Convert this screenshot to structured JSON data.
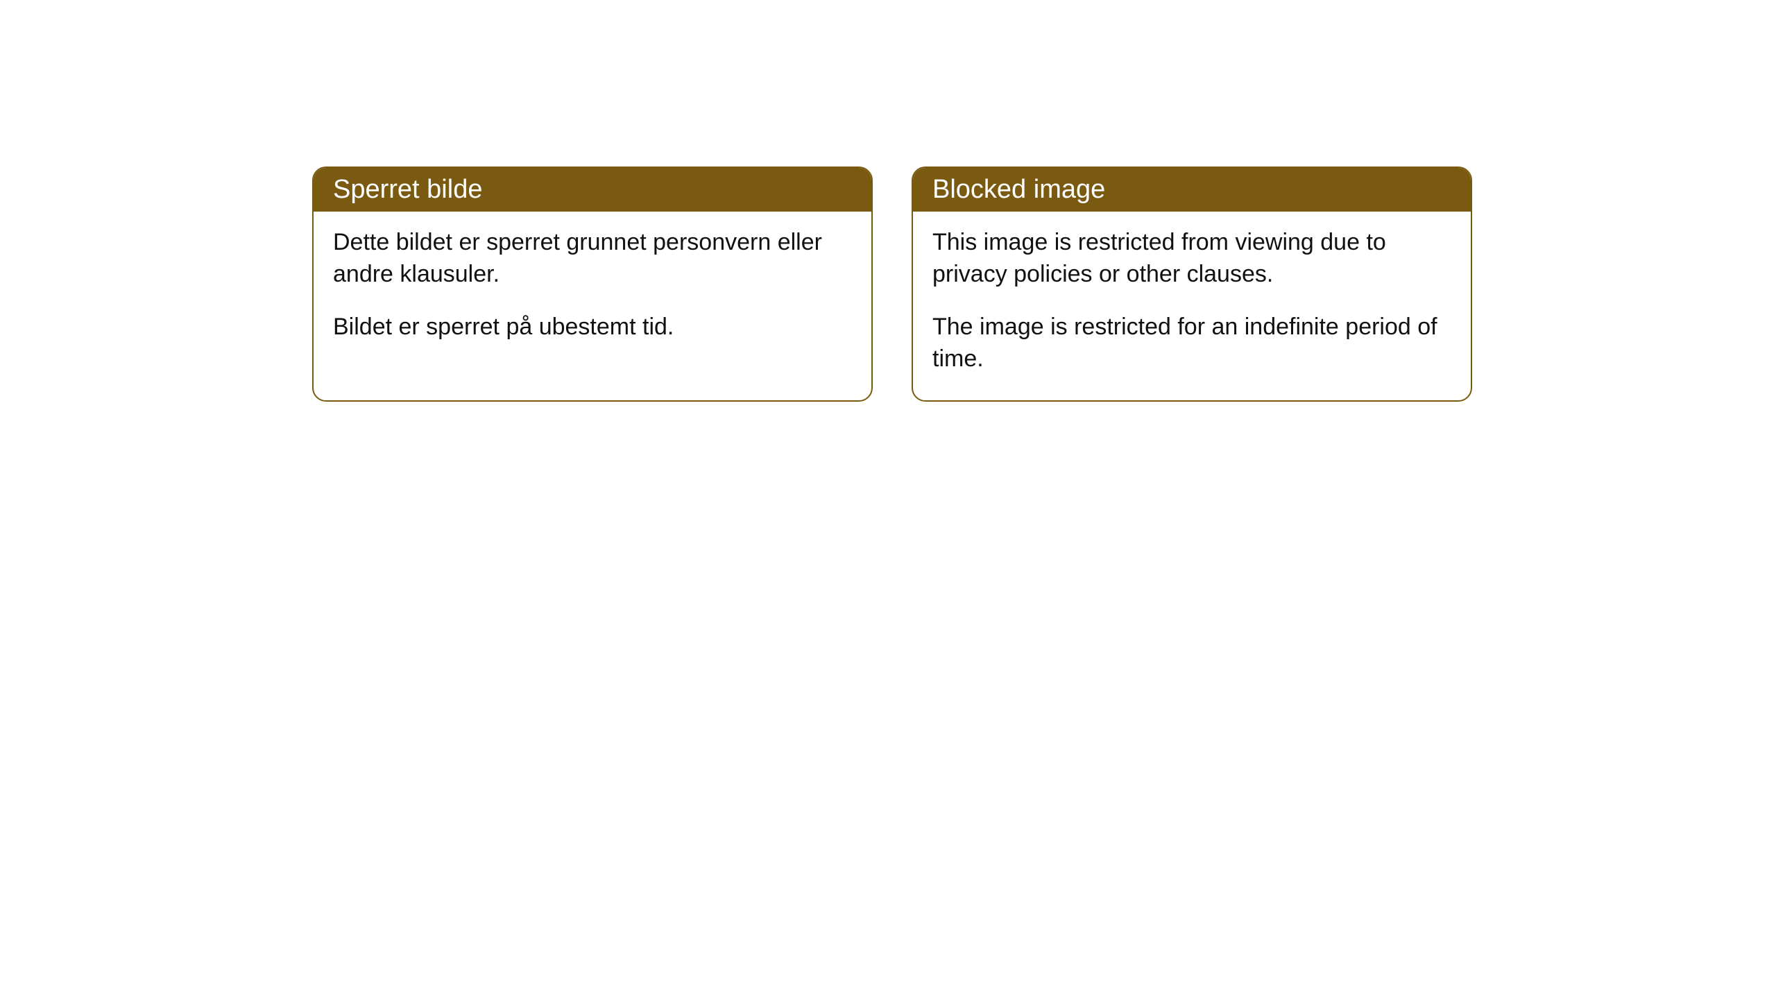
{
  "cards": [
    {
      "title": "Sperret bilde",
      "paragraph1": "Dette bildet er sperret grunnet personvern eller andre klausuler.",
      "paragraph2": "Bildet er sperret på ubestemt tid."
    },
    {
      "title": "Blocked image",
      "paragraph1": "This image is restricted from viewing due to privacy policies or other clauses.",
      "paragraph2": "The image is restricted for an indefinite period of time."
    }
  ],
  "style": {
    "header_background": "#7a5a10",
    "header_text_color": "#ffffff",
    "border_color": "#7a5a10",
    "body_text_color": "#111111",
    "card_background": "#ffffff",
    "border_radius": 20,
    "header_fontsize": 38,
    "body_fontsize": 34
  }
}
